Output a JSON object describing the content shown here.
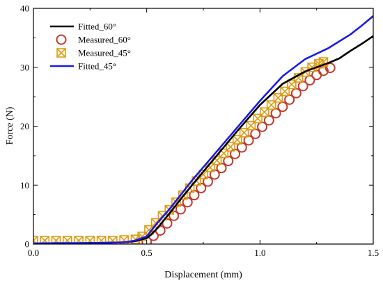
{
  "chart_data": {
    "type": "line",
    "xlabel": "Displacement (mm)",
    "ylabel": "Force (N)",
    "xlim": [
      0.0,
      1.5
    ],
    "ylim": [
      0,
      40
    ],
    "xticks": [
      0.0,
      0.5,
      1.0,
      1.5
    ],
    "xtick_labels": [
      "0.0",
      "0.5",
      "1.0",
      "1.5"
    ],
    "yticks": [
      0,
      10,
      20,
      30,
      40
    ],
    "ytick_labels": [
      "0",
      "10",
      "20",
      "30",
      "40"
    ],
    "grid": false,
    "legend_position": "top-left",
    "series": [
      {
        "name": "Fitted_60°",
        "kind": "line",
        "color": "#000000",
        "x": [
          0.0,
          0.1,
          0.2,
          0.3,
          0.4,
          0.45,
          0.5,
          0.52,
          0.55,
          0.6,
          0.7,
          0.8,
          0.9,
          1.0,
          1.1,
          1.2,
          1.3,
          1.35,
          1.4,
          1.45,
          1.5
        ],
        "y": [
          0.1,
          0.15,
          0.15,
          0.2,
          0.3,
          0.5,
          1.0,
          1.6,
          2.8,
          5.2,
          10.0,
          14.6,
          19.2,
          23.6,
          27.2,
          29.3,
          30.7,
          31.5,
          32.8,
          34.0,
          35.3
        ]
      },
      {
        "name": "Measured_60°",
        "kind": "circle",
        "color": "#C0392B",
        "x": [
          0.5,
          0.53,
          0.56,
          0.59,
          0.62,
          0.65,
          0.68,
          0.71,
          0.74,
          0.77,
          0.8,
          0.83,
          0.86,
          0.89,
          0.92,
          0.95,
          0.98,
          1.01,
          1.04,
          1.07,
          1.1,
          1.13,
          1.16,
          1.19,
          1.22,
          1.25,
          1.28,
          1.31
        ],
        "y": [
          0.4,
          1.4,
          2.3,
          3.5,
          4.8,
          5.9,
          7.1,
          8.3,
          9.5,
          10.6,
          11.8,
          12.9,
          14.1,
          15.3,
          16.4,
          17.6,
          18.7,
          19.9,
          21.0,
          22.2,
          23.3,
          24.5,
          25.6,
          26.8,
          27.8,
          28.7,
          29.4,
          29.9
        ]
      },
      {
        "name": "Measured_45°",
        "kind": "xbox",
        "color": "#E09A10",
        "x": [
          0.0,
          0.05,
          0.1,
          0.15,
          0.2,
          0.25,
          0.3,
          0.35,
          0.4,
          0.45,
          0.48,
          0.51,
          0.54,
          0.57,
          0.6,
          0.63,
          0.66,
          0.69,
          0.72,
          0.75,
          0.78,
          0.81,
          0.84,
          0.87,
          0.9,
          0.93,
          0.96,
          0.99,
          1.02,
          1.05,
          1.08,
          1.11,
          1.14,
          1.17,
          1.2,
          1.23,
          1.26,
          1.28
        ],
        "y": [
          0.6,
          0.6,
          0.6,
          0.6,
          0.6,
          0.6,
          0.6,
          0.6,
          0.7,
          0.8,
          1.3,
          2.4,
          3.6,
          4.8,
          5.8,
          7.1,
          8.3,
          9.5,
          10.7,
          11.8,
          13.0,
          14.2,
          15.4,
          16.5,
          17.7,
          18.9,
          20.1,
          21.3,
          22.4,
          23.6,
          24.8,
          25.9,
          27.1,
          28.2,
          29.2,
          30.0,
          30.6,
          30.9
        ]
      },
      {
        "name": "Fitted_45°",
        "kind": "line",
        "color": "#1A1AE6",
        "x": [
          0.0,
          0.1,
          0.2,
          0.3,
          0.4,
          0.45,
          0.5,
          0.52,
          0.55,
          0.6,
          0.7,
          0.8,
          0.9,
          1.0,
          1.1,
          1.2,
          1.3,
          1.4,
          1.45,
          1.5
        ],
        "y": [
          0.1,
          0.15,
          0.15,
          0.2,
          0.3,
          0.6,
          1.3,
          2.3,
          3.7,
          5.9,
          10.8,
          15.3,
          19.8,
          24.3,
          28.5,
          31.4,
          33.2,
          35.6,
          37.1,
          38.7
        ]
      }
    ]
  }
}
